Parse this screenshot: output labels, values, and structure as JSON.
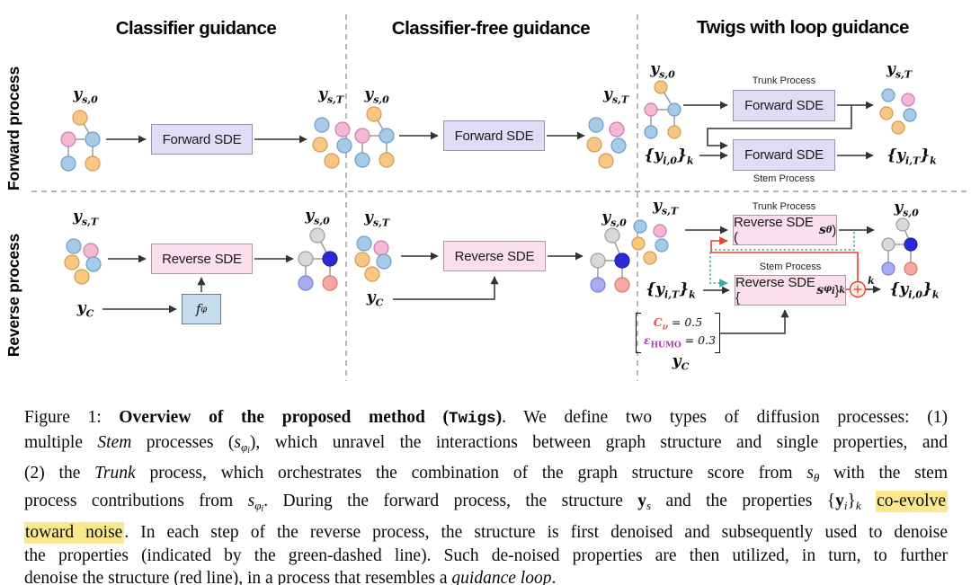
{
  "figure": {
    "columns": [
      {
        "title": "Classifier guidance"
      },
      {
        "title": "Classifier-free guidance"
      },
      {
        "title": "Twigs with loop guidance"
      }
    ],
    "rows": {
      "forward": "Forward process",
      "reverse": "Reverse process"
    },
    "boxes": {
      "forward_sde": "Forward SDE",
      "reverse_sde": "Reverse SDE",
      "reverse_sde_theta_html": "Reverse SDE (<span class=\"bm\">s</span><sub class=\"bm\">θ</sub>)",
      "reverse_sde_phi_html": "Reverse SDE {<span class=\"bm\">s</span><sub class=\"bm\">φ<sub>i</sub></sub>}<sub class=\"bm\">k</sub>",
      "f_phi_html": "f<sub>φ</sub>",
      "trunk_process": "Trunk Process",
      "stem_process": "Stem Process"
    },
    "labels": {
      "ys0_html": "y<sub>s,0</sub>",
      "ysT_html": "y<sub>s,T</sub>",
      "yi0k_html": "{y<sub>i,0</sub>}<sub>k</sub>",
      "yiTk_html": "{y<sub>i,T</sub>}<sub>k</sub>",
      "yC_html": "y<sub>C</sub>",
      "plus_sup": "k"
    },
    "condition": {
      "line1_html": "<span class=\"cv\">C<sub>ν</sub></span> = 0.5",
      "line2_html": "<span class=\"ch\">ε<sub class=\"sc\">HUMO</sub></span> = 0.3"
    },
    "colors": {
      "red_loop": "#e8402c",
      "green_dashed": "#35a79c",
      "highlight": "#fae88e",
      "box_lavender": "#dfddf5",
      "box_pink": "#fbdfec",
      "box_blue": "#c6ddeb",
      "node_orange": "#f9c784",
      "node_pink": "#f4b8d4",
      "node_blue": "#a6cae8",
      "node_gray": "#d9d9d9",
      "node_darkblue": "#2b2bd5",
      "node_periwinkle": "#a5acf2",
      "node_salmon": "#f7a8a1"
    }
  },
  "caption": {
    "lines": [
      [
        {
          "s": "plain",
          "t": "Figure 1:"
        },
        {
          "s": "plain",
          "t": "  "
        },
        {
          "s": "bold",
          "t": "Overview of the proposed method ("
        },
        {
          "s": "boldmono",
          "t": "Twigs"
        },
        {
          "s": "bold",
          "t": ")"
        },
        {
          "s": "plain",
          "t": ". We define two types of diffusion processes: (1)"
        }
      ],
      [
        {
          "s": "plain",
          "t": "multiple "
        },
        {
          "s": "italic",
          "t": "Stem"
        },
        {
          "s": "plain",
          "t": " processes ("
        },
        {
          "s": "mi",
          "t": "s"
        },
        {
          "s": "sub",
          "t": "φ"
        },
        {
          "s": "sub2",
          "t": "i"
        },
        {
          "s": "plain",
          "t": "), which unravel the interactions between graph structure and single properties, and"
        }
      ],
      [
        {
          "s": "plain",
          "t": "(2) the "
        },
        {
          "s": "italic",
          "t": "Trunk"
        },
        {
          "s": "plain",
          "t": " process, which orchestrates the combination of the graph structure score from "
        },
        {
          "s": "mi",
          "t": "s"
        },
        {
          "s": "sub",
          "t": "θ"
        },
        {
          "s": "plain",
          "t": " with the stem"
        }
      ],
      [
        {
          "s": "plain",
          "t": "process contributions from "
        },
        {
          "s": "mi",
          "t": "s"
        },
        {
          "s": "sub",
          "t": "φ"
        },
        {
          "s": "sub2",
          "t": "i"
        },
        {
          "s": "plain",
          "t": ". During the forward process, the structure "
        },
        {
          "s": "mbf",
          "t": "y"
        },
        {
          "s": "sub",
          "t": "s"
        },
        {
          "s": "plain",
          "t": " and the properties {"
        },
        {
          "s": "mbf",
          "t": "y"
        },
        {
          "s": "sub",
          "t": "i"
        },
        {
          "s": "plain",
          "t": "}"
        },
        {
          "s": "sub",
          "t": "k"
        },
        {
          "s": "plain",
          "t": " "
        },
        {
          "s": "hl",
          "t": "co-evolve"
        }
      ],
      [
        {
          "s": "hl",
          "t": "toward noise"
        },
        {
          "s": "plain",
          "t": ". In each step of the reverse process, the structure is first denoised and subsequently used to denoise"
        }
      ],
      [
        {
          "s": "plain",
          "t": "the properties (indicated by the green-dashed line). Such de-noised properties are then utilized, in turn, to further"
        }
      ],
      [
        {
          "s": "plain",
          "t": "denoise the structure (red line), in a process that resembles a "
        },
        {
          "s": "italic",
          "t": "guidance loop"
        },
        {
          "s": "plain",
          "t": "."
        }
      ]
    ]
  }
}
